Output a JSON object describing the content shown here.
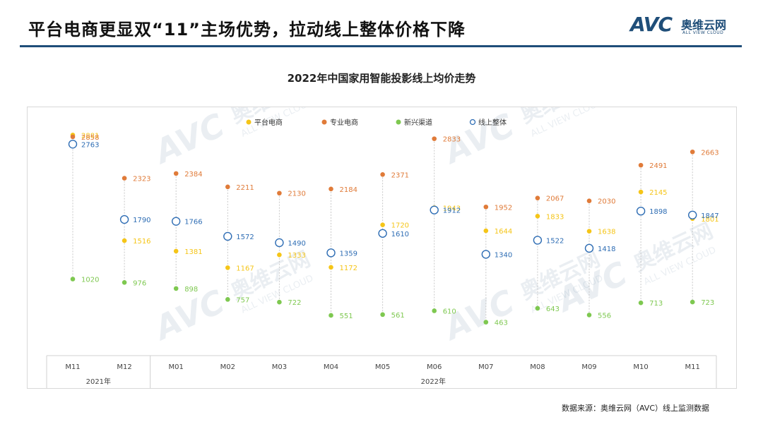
{
  "page": {
    "title": "平台电商更显双“11”主场优势，拉动线上整体价格下降",
    "source": "数据来源：奥维云网（AVC）线上监测数据"
  },
  "logo": {
    "mark": "AVC",
    "cn": "奥维云网",
    "en": "ALL VIEW CLOUD"
  },
  "watermark": {
    "mark": "AVC",
    "cn": "奥维云网",
    "en": "ALL VIEW CLOUD"
  },
  "colors": {
    "header_rule": "#1f4e79",
    "platform": "#f5c518",
    "professional": "#e07b39",
    "emerging": "#7ec850",
    "overall": "#2e6db4",
    "dashed": "#c8c8c8"
  },
  "chart_data": {
    "type": "scatter",
    "title": "2022年中国家用智能投影线上均价走势",
    "categories": [
      "M11",
      "M12",
      "M01",
      "M02",
      "M03",
      "M04",
      "M05",
      "M06",
      "M07",
      "M08",
      "M09",
      "M10",
      "M11"
    ],
    "year_groups": [
      {
        "label": "2021年",
        "count": 2
      },
      {
        "label": "2022年",
        "count": 11
      }
    ],
    "legend_position": "top",
    "grid": false,
    "series": [
      {
        "name": "平台电商",
        "marker": "dot",
        "color": "#f5c518",
        "values": [
          2881,
          1516,
          1381,
          1167,
          1333,
          1172,
          1720,
          1943,
          1644,
          1833,
          1638,
          2145,
          1801
        ]
      },
      {
        "name": "专业电商",
        "marker": "dot",
        "color": "#e07b39",
        "values": [
          2858,
          2323,
          2384,
          2211,
          2130,
          2184,
          2371,
          2833,
          1952,
          2067,
          2030,
          2491,
          2663
        ]
      },
      {
        "name": "新兴渠道",
        "marker": "dot",
        "color": "#7ec850",
        "values": [
          1020,
          976,
          898,
          757,
          722,
          551,
          561,
          610,
          463,
          643,
          556,
          713,
          723
        ]
      },
      {
        "name": "线上整体",
        "marker": "ring",
        "color": "#2e6db4",
        "values": [
          2763,
          1790,
          1766,
          1572,
          1490,
          1359,
          1610,
          1912,
          1340,
          1522,
          1418,
          1898,
          1847
        ]
      }
    ]
  }
}
